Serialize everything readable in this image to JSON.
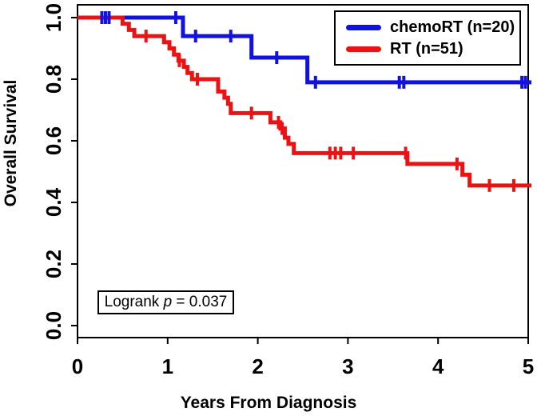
{
  "axes": {
    "x": {
      "label": "Years From Diagnosis",
      "ticks": [
        0,
        1,
        2,
        3,
        4,
        5
      ],
      "tick_labels": [
        "0",
        "1",
        "2",
        "3",
        "4",
        "5"
      ],
      "range": [
        0,
        5
      ]
    },
    "y": {
      "label": "Overall Survival",
      "ticks": [
        0.0,
        0.2,
        0.4,
        0.6,
        0.8,
        1.0
      ],
      "tick_labels": [
        "0.0",
        "0.2",
        "0.4",
        "0.6",
        "0.8",
        "1.0"
      ],
      "range": [
        0,
        1
      ]
    }
  },
  "legend": {
    "entries": [
      {
        "label": "chemoRT (n=20)",
        "color": "#1111e0"
      },
      {
        "label": "RT (n=51)",
        "color": "#ea1212"
      }
    ]
  },
  "annotation": {
    "prefix": "Logrank ",
    "p_symbol": "p",
    "value_text": " = 0.037"
  },
  "chart_data": {
    "type": "line",
    "subtype": "kaplan-meier-step",
    "title": "",
    "xlabel": "Years From Diagnosis",
    "ylabel": "Overall Survival",
    "xlim": [
      0,
      5
    ],
    "ylim": [
      0,
      1
    ],
    "grid": false,
    "legend_position": "top-right",
    "logrank_p": "0.037",
    "series": [
      {
        "name": "chemoRT (n=20)",
        "n": 20,
        "color": "#1111e0",
        "steps": [
          [
            0,
            1.0
          ],
          [
            1.17,
            0.94
          ],
          [
            1.93,
            0.87
          ],
          [
            2.55,
            0.79
          ],
          [
            5.0,
            0.79
          ]
        ],
        "censor_marks": [
          [
            0.27,
            1.0
          ],
          [
            0.31,
            1.0
          ],
          [
            0.35,
            1.0
          ],
          [
            1.09,
            1.0
          ],
          [
            1.31,
            0.94
          ],
          [
            1.7,
            0.94
          ],
          [
            2.21,
            0.87
          ],
          [
            2.64,
            0.79
          ],
          [
            3.57,
            0.79
          ],
          [
            3.62,
            0.79
          ],
          [
            4.93,
            0.79
          ],
          [
            4.97,
            0.79
          ]
        ]
      },
      {
        "name": "RT (n=51)",
        "n": 51,
        "color": "#ea1212",
        "steps": [
          [
            0,
            1.0
          ],
          [
            0.5,
            0.98
          ],
          [
            0.57,
            0.96
          ],
          [
            0.63,
            0.94
          ],
          [
            0.96,
            0.92
          ],
          [
            1.02,
            0.9
          ],
          [
            1.07,
            0.88
          ],
          [
            1.12,
            0.86
          ],
          [
            1.18,
            0.84
          ],
          [
            1.22,
            0.82
          ],
          [
            1.27,
            0.8
          ],
          [
            1.56,
            0.76
          ],
          [
            1.63,
            0.74
          ],
          [
            1.67,
            0.72
          ],
          [
            1.7,
            0.69
          ],
          [
            2.14,
            0.66
          ],
          [
            2.25,
            0.64
          ],
          [
            2.3,
            0.61
          ],
          [
            2.34,
            0.59
          ],
          [
            2.4,
            0.56
          ],
          [
            3.66,
            0.525
          ],
          [
            4.27,
            0.49
          ],
          [
            4.35,
            0.455
          ],
          [
            5.0,
            0.455
          ]
        ],
        "censor_marks": [
          [
            0.76,
            0.94
          ],
          [
            1.13,
            0.86
          ],
          [
            1.33,
            0.8
          ],
          [
            1.93,
            0.69
          ],
          [
            2.23,
            0.66
          ],
          [
            2.27,
            0.64
          ],
          [
            2.8,
            0.56
          ],
          [
            2.86,
            0.56
          ],
          [
            2.92,
            0.56
          ],
          [
            3.06,
            0.56
          ],
          [
            3.64,
            0.56
          ],
          [
            4.21,
            0.525
          ],
          [
            4.57,
            0.455
          ],
          [
            4.84,
            0.455
          ]
        ]
      }
    ]
  }
}
